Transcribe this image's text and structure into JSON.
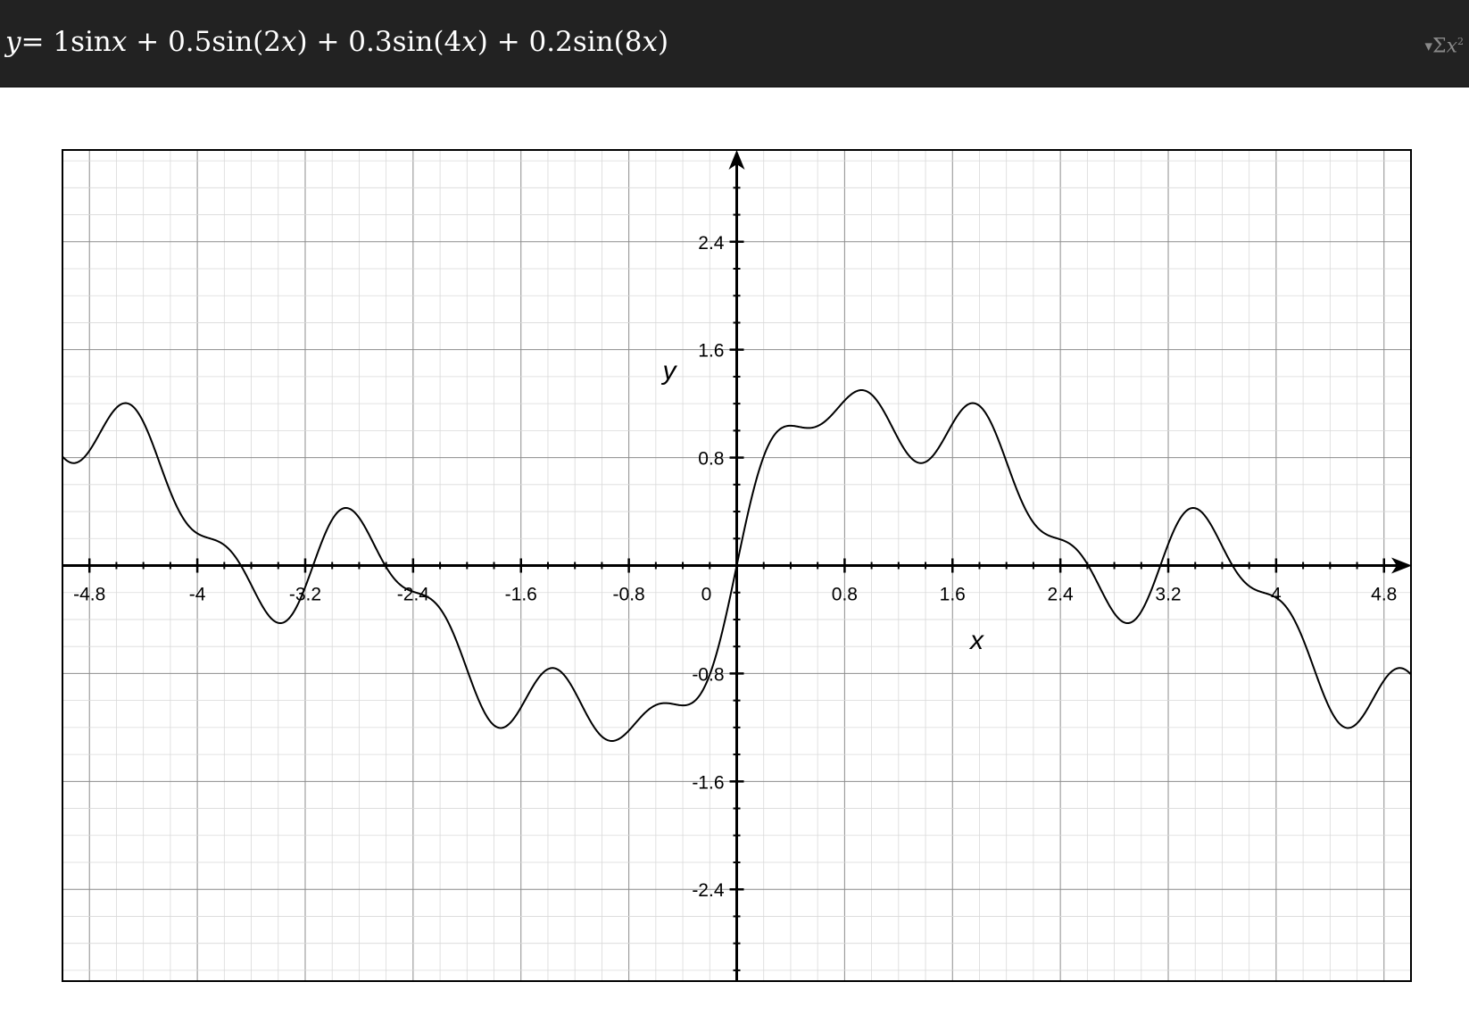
{
  "header": {
    "equation_lhs": "y",
    "equation_terms": [
      {
        "coef": "1",
        "func": "sin",
        "arg": "x",
        "paren": false
      },
      {
        "coef": "0.5",
        "func": "sin",
        "arg": "2x",
        "paren": true
      },
      {
        "coef": "0.3",
        "func": "sin",
        "arg": "4x",
        "paren": true
      },
      {
        "coef": "0.2",
        "func": "sin",
        "arg": "8x",
        "paren": true
      }
    ],
    "icon": "sigma-x-squared-icon",
    "icon_color": "#8a8a8a",
    "background_color": "#222222"
  },
  "chart_data": {
    "type": "line",
    "title": "",
    "xlabel": "x",
    "ylabel": "y",
    "xlim": [
      -5.0,
      5.0
    ],
    "ylim": [
      -3.08,
      3.08
    ],
    "x_ticks": [
      -4.8,
      -4,
      -3.2,
      -2.4,
      -1.6,
      -0.8,
      0,
      0.8,
      1.6,
      2.4,
      3.2,
      4,
      4.8
    ],
    "x_tick_labels": [
      "-4.8",
      "-4",
      "-3.2",
      "-2.4",
      "-1.6",
      "-0.8",
      "0",
      "0.8",
      "1.6",
      "2.4",
      "3.2",
      "4",
      "4.8"
    ],
    "y_ticks": [
      2.4,
      1.6,
      0.8,
      -0.8,
      -1.6,
      -2.4
    ],
    "y_tick_labels": [
      "2.4",
      "1.6",
      "0.8",
      "-0.8",
      "-1.6",
      "-2.4"
    ],
    "major_grid_step": 0.8,
    "minor_grid_step": 0.2,
    "grid": true,
    "legend": "none",
    "line_color": "#000000",
    "series": [
      {
        "terms": [
          {
            "amplitude": 1,
            "frequency": 1
          },
          {
            "amplitude": 0.5,
            "frequency": 2
          },
          {
            "amplitude": 0.3,
            "frequency": 4
          },
          {
            "amplitude": 0.2,
            "frequency": 8
          }
        ]
      }
    ]
  }
}
